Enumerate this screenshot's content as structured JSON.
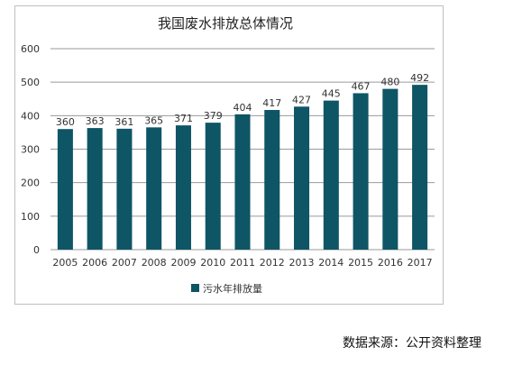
{
  "chart_data": {
    "type": "bar",
    "title": "我国废水排放总体情况",
    "categories": [
      "2005",
      "2006",
      "2007",
      "2008",
      "2009",
      "2010",
      "2011",
      "2012",
      "2013",
      "2014",
      "2015",
      "2016",
      "2017"
    ],
    "series": [
      {
        "name": "污水年排放量",
        "values": [
          360,
          363,
          361,
          365,
          371,
          379,
          404,
          417,
          427,
          445,
          467,
          480,
          492
        ],
        "color": "#0e5566"
      }
    ],
    "ylim": [
      0,
      600
    ],
    "yticks": [
      0,
      100,
      200,
      300,
      400,
      500,
      600
    ],
    "grid": true,
    "legend_position": "bottom"
  },
  "footer": {
    "source": "数据来源：公开资料整理"
  }
}
